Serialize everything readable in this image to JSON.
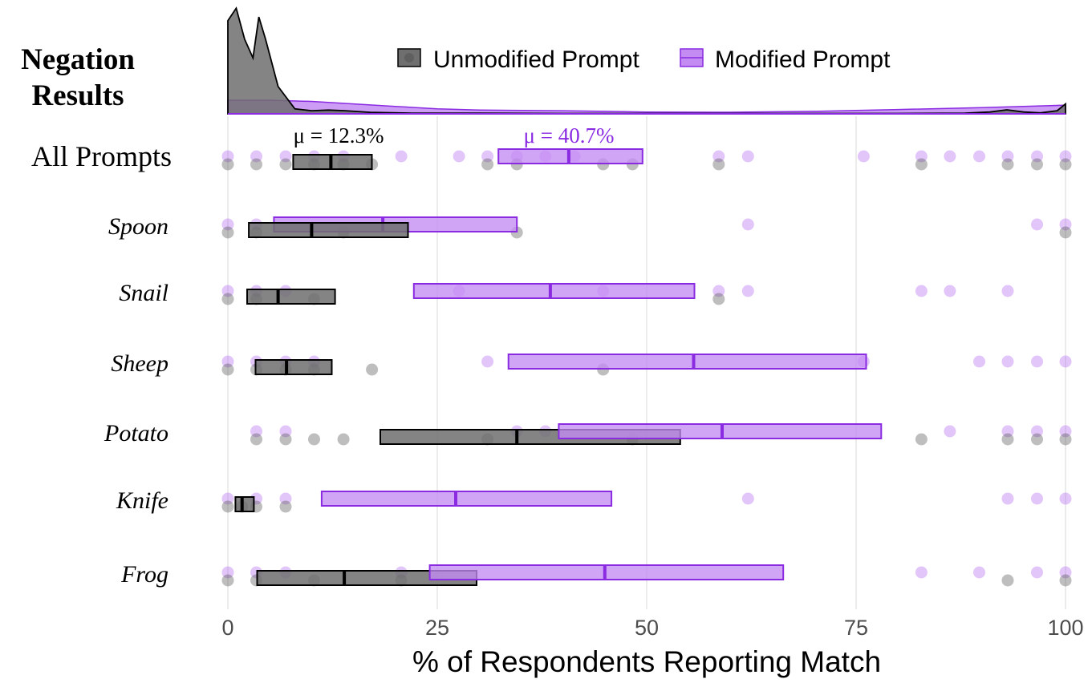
{
  "chart_data": {
    "type": "box-dot",
    "title": "Negation Results",
    "title_lines": [
      "Negation",
      "Results"
    ],
    "xlabel": "% of Respondents Reporting Match",
    "xlim": [
      0,
      100
    ],
    "xticks": [
      0,
      25,
      50,
      75,
      100
    ],
    "xtick_labels": [
      "0",
      "25",
      "50",
      "75",
      "100"
    ],
    "grid": true,
    "legend": {
      "position": "top",
      "entries": [
        {
          "key": "unmod",
          "label": "Unmodified Prompt"
        },
        {
          "key": "mod",
          "label": "Modified Prompt"
        }
      ]
    },
    "colors": {
      "unmod_fill": "#6f6f6f",
      "unmod_stroke": "#000000",
      "unmod_dot": "#555555",
      "mod_fill": "#c48cf3",
      "mod_stroke": "#8a2be2",
      "mod_dot": "#a64df0",
      "grid": "#e6e6e6",
      "axis_text": "#4d4d4d",
      "mean_unmod": "#000000",
      "mean_mod": "#8a2be2"
    },
    "means": {
      "unmod": "μ = 12.3%",
      "mod": "μ = 40.7%"
    },
    "density": {
      "unmod": [
        [
          0,
          75
        ],
        [
          1,
          85
        ],
        [
          2,
          60
        ],
        [
          3,
          45
        ],
        [
          3.7,
          78
        ],
        [
          4.5,
          60
        ],
        [
          6,
          22
        ],
        [
          8,
          4
        ],
        [
          10,
          2.5
        ],
        [
          12,
          3
        ],
        [
          14,
          2.5
        ],
        [
          17,
          1.2
        ],
        [
          22,
          0.6
        ],
        [
          30,
          0.5
        ],
        [
          40,
          0.3
        ],
        [
          50,
          0.3
        ],
        [
          60,
          0.3
        ],
        [
          70,
          0.3
        ],
        [
          80,
          0.3
        ],
        [
          88,
          0.5
        ],
        [
          91,
          1.5
        ],
        [
          93,
          3.2
        ],
        [
          95,
          1.5
        ],
        [
          97,
          0.8
        ],
        [
          99,
          2.5
        ],
        [
          100,
          8
        ]
      ],
      "mod": [
        [
          0,
          11
        ],
        [
          5,
          11
        ],
        [
          10,
          10
        ],
        [
          15,
          8
        ],
        [
          20,
          6
        ],
        [
          25,
          4
        ],
        [
          30,
          3
        ],
        [
          40,
          2.5
        ],
        [
          50,
          1.5
        ],
        [
          60,
          1.3
        ],
        [
          70,
          2
        ],
        [
          80,
          3.5
        ],
        [
          90,
          5
        ],
        [
          95,
          6
        ],
        [
          100,
          7
        ]
      ]
    },
    "rows": [
      {
        "label": "All Prompts",
        "style": "normal",
        "unmod": {
          "q1": 7.8,
          "median": 12.3,
          "q3": 17.2,
          "points": [
            0,
            3.4,
            6.9,
            10.3,
            13.8,
            17.2,
            31.0,
            34.5,
            44.8,
            48.3,
            58.6,
            82.8,
            93.1,
            96.6,
            100
          ]
        },
        "mod": {
          "q1": 32.3,
          "median": 40.7,
          "q3": 49.5,
          "points": [
            0,
            3.4,
            6.9,
            10.3,
            13.8,
            20.7,
            27.6,
            31.0,
            34.5,
            37.9,
            41.4,
            58.6,
            62.1,
            75.9,
            82.8,
            86.2,
            89.7,
            93.1,
            96.6,
            100
          ]
        }
      },
      {
        "label": "Spoon",
        "style": "italic",
        "unmod": {
          "q1": 2.5,
          "median": 10.0,
          "q3": 21.5,
          "points": [
            0,
            3.4,
            13.8,
            34.5,
            100
          ]
        },
        "mod": {
          "q1": 5.5,
          "median": 18.5,
          "q3": 34.5,
          "points": [
            0,
            3.4,
            62.1,
            96.6,
            100
          ]
        }
      },
      {
        "label": "Snail",
        "style": "italic",
        "unmod": {
          "q1": 2.3,
          "median": 6.0,
          "q3": 12.8,
          "points": [
            0,
            3.4,
            10.3,
            58.6
          ]
        },
        "mod": {
          "q1": 22.2,
          "median": 38.5,
          "q3": 55.7,
          "points": [
            0,
            3.4,
            6.9,
            27.6,
            44.8,
            58.6,
            62.1,
            82.8,
            86.2,
            93.1
          ]
        }
      },
      {
        "label": "Sheep",
        "style": "italic",
        "unmod": {
          "q1": 3.3,
          "median": 7.0,
          "q3": 12.4,
          "points": [
            0,
            3.4,
            6.9,
            10.3,
            17.2,
            44.8
          ]
        },
        "mod": {
          "q1": 33.5,
          "median": 55.6,
          "q3": 76.2,
          "points": [
            0,
            3.4,
            6.9,
            10.3,
            31.0,
            75.9,
            89.7,
            93.1,
            96.6,
            100
          ]
        }
      },
      {
        "label": "Potato",
        "style": "italic",
        "unmod": {
          "q1": 18.2,
          "median": 34.5,
          "q3": 54.0,
          "points": [
            3.4,
            6.9,
            10.3,
            13.8,
            31.0,
            48.3,
            82.8,
            93.1,
            96.6,
            100
          ]
        },
        "mod": {
          "q1": 39.5,
          "median": 59.0,
          "q3": 78.0,
          "points": [
            3.4,
            6.9,
            34.5,
            37.9,
            86.2,
            93.1,
            96.6,
            100
          ]
        }
      },
      {
        "label": "Knife",
        "style": "italic",
        "unmod": {
          "q1": 0.9,
          "median": 1.7,
          "q3": 3.1,
          "points": [
            0,
            1.7,
            3.4,
            6.9
          ]
        },
        "mod": {
          "q1": 11.2,
          "median": 27.2,
          "q3": 45.8,
          "points": [
            0,
            3.4,
            6.9,
            62.1,
            93.1,
            96.6,
            100
          ]
        }
      },
      {
        "label": "Frog",
        "style": "italic",
        "unmod": {
          "q1": 3.5,
          "median": 13.9,
          "q3": 29.7,
          "points": [
            0,
            3.4,
            10.3,
            20.7,
            93.1,
            100
          ]
        },
        "mod": {
          "q1": 24.1,
          "median": 45.0,
          "q3": 66.3,
          "points": [
            0,
            3.4,
            6.9,
            20.7,
            82.8,
            89.7,
            96.6,
            100
          ]
        }
      }
    ]
  }
}
